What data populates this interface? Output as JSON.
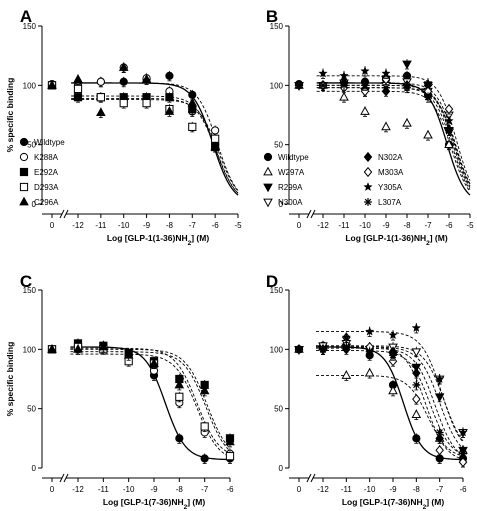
{
  "chart_data": [
    {
      "type": "line",
      "panel_label": "A",
      "ylabel": "% specific binding",
      "xlabel_main": "Log [GLP-1(1-36)NH",
      "xlabel_sub": "2",
      "xlabel_tail": "] (M)",
      "ylim": [
        0,
        150
      ],
      "yticks": [
        "0",
        "50",
        "100",
        "150"
      ],
      "xlim": [
        -12.8,
        -5
      ],
      "xticks": [
        -12,
        -11,
        -10,
        -9,
        -8,
        -7,
        -6,
        -5
      ],
      "xticklabels": [
        "-12",
        "-11",
        "-10",
        "-9",
        "-8",
        "-7",
        "-6",
        "-5"
      ],
      "zero_label": "0",
      "legend": [
        "Wildtype",
        "K288A",
        "E292A",
        "D293A",
        "C296A"
      ],
      "series": [
        {
          "name": "Wildtype",
          "marker": "circle-filled",
          "x": [
            -12,
            -11,
            -10,
            -9,
            -8,
            -7,
            -6
          ],
          "y": [
            100,
            103,
            103,
            105,
            108,
            92,
            50
          ],
          "zero": 101,
          "fit": {
            "top": 102,
            "bottom": 0,
            "logic50": -6.1,
            "hill": 1,
            "dash": false
          }
        },
        {
          "name": "K288A",
          "marker": "circle-open",
          "x": [
            -12,
            -11,
            -10,
            -9,
            -8,
            -7,
            -6
          ],
          "y": [
            99,
            103,
            115,
            106,
            95,
            78,
            62
          ],
          "zero": 100,
          "fit": {
            "top": 102,
            "bottom": 0,
            "logic50": -5.9,
            "hill": 1,
            "dash": true
          }
        },
        {
          "name": "E292A",
          "marker": "square-filled",
          "x": [
            -12,
            -11,
            -10,
            -9,
            -8,
            -7,
            -6
          ],
          "y": [
            90,
            90,
            90,
            90,
            90,
            80,
            48
          ],
          "zero": 100,
          "fit": {
            "top": 89,
            "bottom": 0,
            "logic50": -5.95,
            "hill": 1,
            "dash": true
          }
        },
        {
          "name": "D293A",
          "marker": "square-open",
          "x": [
            -12,
            -11,
            -10,
            -9,
            -8,
            -7,
            -6
          ],
          "y": [
            97,
            90,
            85,
            85,
            80,
            65,
            55
          ],
          "zero": 100,
          "fit": {
            "top": 88,
            "bottom": 0,
            "logic50": -5.85,
            "hill": 1,
            "dash": true
          }
        },
        {
          "name": "C296A",
          "marker": "triangle-up-filled",
          "x": [
            -12,
            -11,
            -10,
            -9,
            -8,
            -7,
            -6
          ],
          "y": [
            105,
            77,
            115,
            105,
            78,
            85,
            48
          ],
          "zero": 100,
          "fit": {
            "top": 91,
            "bottom": 0,
            "logic50": -5.95,
            "hill": 1,
            "dash": true
          }
        }
      ]
    },
    {
      "type": "line",
      "panel_label": "B",
      "ylabel": "",
      "xlabel_main": "Log [GLP-1(1-36)NH",
      "xlabel_sub": "2",
      "xlabel_tail": "] (M)",
      "ylim": [
        0,
        150
      ],
      "yticks": [
        "0",
        "50",
        "100",
        "150"
      ],
      "xlim": [
        -12.8,
        -5
      ],
      "xticks": [
        -12,
        -11,
        -10,
        -9,
        -8,
        -7,
        -6,
        -5
      ],
      "xticklabels": [
        "-12",
        "-11",
        "-10",
        "-9",
        "-8",
        "-7",
        "-6",
        "-5"
      ],
      "zero_label": "0",
      "legend": [
        "Wildtype",
        "W297A",
        "R299A",
        "N300A",
        "N302A",
        "M303A",
        "Y305A",
        "L307A"
      ],
      "series": [
        {
          "name": "Wildtype",
          "marker": "circle-filled",
          "x": [
            -12,
            -11,
            -10,
            -9,
            -8,
            -7,
            -6
          ],
          "y": [
            100,
            103,
            103,
            105,
            108,
            92,
            50
          ],
          "zero": 101,
          "fit": {
            "top": 102,
            "bottom": 0,
            "logic50": -6.1,
            "hill": 1,
            "dash": false
          }
        },
        {
          "name": "W297A",
          "marker": "triangle-up-open",
          "x": [
            -12,
            -11,
            -10,
            -9,
            -8,
            -7,
            -6
          ],
          "y": [
            100,
            90,
            78,
            65,
            68,
            58,
            50
          ],
          "zero": 100,
          "fit": {
            "top": 95,
            "bottom": 0,
            "logic50": -5.9,
            "hill": 1,
            "dash": true
          }
        },
        {
          "name": "R299A",
          "marker": "triangle-down-filled",
          "x": [
            -12,
            -11,
            -10,
            -9,
            -8,
            -7,
            -6
          ],
          "y": [
            100,
            100,
            95,
            105,
            118,
            100,
            62
          ],
          "zero": 100,
          "fit": {
            "top": 102,
            "bottom": 0,
            "logic50": -5.7,
            "hill": 1,
            "dash": true
          }
        },
        {
          "name": "N300A",
          "marker": "triangle-down-open",
          "x": [
            -12,
            -11,
            -10,
            -9,
            -8,
            -7,
            -6
          ],
          "y": [
            100,
            102,
            95,
            100,
            103,
            95,
            75
          ],
          "zero": 100,
          "fit": {
            "top": 100,
            "bottom": 0,
            "logic50": -5.75,
            "hill": 1,
            "dash": true
          }
        },
        {
          "name": "N302A",
          "marker": "diamond-filled",
          "x": [
            -12,
            -11,
            -10,
            -9,
            -8,
            -7,
            -6
          ],
          "y": [
            100,
            102,
            97,
            95,
            100,
            100,
            62
          ],
          "zero": 100,
          "fit": {
            "top": 100,
            "bottom": 0,
            "logic50": -5.8,
            "hill": 1,
            "dash": true
          }
        },
        {
          "name": "M303A",
          "marker": "diamond-open",
          "x": [
            -12,
            -11,
            -10,
            -9,
            -8,
            -7,
            -6
          ],
          "y": [
            100,
            98,
            95,
            105,
            100,
            95,
            80
          ],
          "zero": 100,
          "fit": {
            "top": 98,
            "bottom": 0,
            "logic50": -5.7,
            "hill": 1,
            "dash": true
          }
        },
        {
          "name": "Y305A",
          "marker": "star",
          "x": [
            -12,
            -11,
            -10,
            -9,
            -8,
            -7,
            -6
          ],
          "y": [
            110,
            108,
            112,
            110,
            100,
            102,
            70
          ],
          "zero": 100,
          "fit": {
            "top": 108,
            "bottom": 0,
            "logic50": -5.65,
            "hill": 1,
            "dash": true
          }
        },
        {
          "name": "L307A",
          "marker": "asterisk",
          "x": [
            -12,
            -11,
            -10,
            -9,
            -8,
            -7,
            -6
          ],
          "y": [
            100,
            100,
            100,
            98,
            98,
            90,
            62
          ],
          "zero": 100,
          "fit": {
            "top": 98,
            "bottom": 0,
            "logic50": -5.85,
            "hill": 1,
            "dash": true
          }
        }
      ]
    },
    {
      "type": "line",
      "panel_label": "C",
      "ylabel": "% specific binding",
      "xlabel_main": "Log [GLP-1(7-36)NH",
      "xlabel_sub": "2",
      "xlabel_tail": "] (M)",
      "ylim": [
        0,
        150
      ],
      "yticks": [
        "0",
        "50",
        "100",
        "150"
      ],
      "xlim": [
        -12.8,
        -6
      ],
      "xticks": [
        -12,
        -11,
        -10,
        -9,
        -8,
        -7,
        -6
      ],
      "xticklabels": [
        "-12",
        "-11",
        "-10",
        "-9",
        "-8",
        "-7",
        "-6"
      ],
      "zero_label": "0",
      "legend": [],
      "series": [
        {
          "name": "Wildtype",
          "marker": "circle-filled",
          "x": [
            -12,
            -11,
            -10,
            -9,
            -8,
            -7,
            -6
          ],
          "y": [
            103,
            103,
            95,
            78,
            25,
            8,
            8
          ],
          "zero": 100,
          "fit": {
            "top": 102,
            "bottom": 7,
            "logic50": -8.55,
            "hill": 1.1,
            "dash": false
          }
        },
        {
          "name": "K288A",
          "marker": "circle-open",
          "x": [
            -12,
            -11,
            -10,
            -9,
            -8,
            -7,
            -6
          ],
          "y": [
            100,
            102,
            95,
            82,
            55,
            30,
            12
          ],
          "zero": 100,
          "fit": {
            "top": 101,
            "bottom": 8,
            "logic50": -7.3,
            "hill": 1,
            "dash": true
          }
        },
        {
          "name": "E292A",
          "marker": "square-filled",
          "x": [
            -12,
            -11,
            -10,
            -9,
            -8,
            -7,
            -6
          ],
          "y": [
            105,
            103,
            97,
            90,
            75,
            70,
            25
          ],
          "zero": 100,
          "fit": {
            "top": 100,
            "bottom": 6,
            "logic50": -6.9,
            "hill": 1,
            "dash": true
          }
        },
        {
          "name": "D293A",
          "marker": "square-open",
          "x": [
            -12,
            -11,
            -10,
            -9,
            -8,
            -7,
            -6
          ],
          "y": [
            102,
            100,
            90,
            88,
            60,
            35,
            10
          ],
          "zero": 100,
          "fit": {
            "top": 96,
            "bottom": 5,
            "logic50": -7.3,
            "hill": 1,
            "dash": true
          }
        },
        {
          "name": "C296A",
          "marker": "triangle-up-filled",
          "x": [
            -12,
            -11,
            -10,
            -9,
            -8,
            -7,
            -6
          ],
          "y": [
            100,
            102,
            95,
            88,
            70,
            65,
            22
          ],
          "zero": 100,
          "fit": {
            "top": 98,
            "bottom": 5,
            "logic50": -6.95,
            "hill": 1,
            "dash": true
          }
        }
      ]
    },
    {
      "type": "line",
      "panel_label": "D",
      "ylabel": "",
      "xlabel_main": "Log [GLP-1(7-36)NH",
      "xlabel_sub": "2",
      "xlabel_tail": "] (M)",
      "ylim": [
        0,
        150
      ],
      "yticks": [
        "0",
        "50",
        "100",
        "150"
      ],
      "xlim": [
        -12.8,
        -6
      ],
      "xticks": [
        -12,
        -11,
        -10,
        -9,
        -8,
        -7,
        -6
      ],
      "xticklabels": [
        "-12",
        "-11",
        "-10",
        "-9",
        "-8",
        "-7",
        "-6"
      ],
      "zero_label": "0",
      "legend": [],
      "series": [
        {
          "name": "Wildtype",
          "marker": "circle-filled",
          "x": [
            -12,
            -11,
            -10,
            -9,
            -8,
            -7,
            -6
          ],
          "y": [
            103,
            103,
            95,
            70,
            25,
            8,
            8
          ],
          "zero": 100,
          "fit": {
            "top": 102,
            "bottom": 7,
            "logic50": -8.55,
            "hill": 1.1,
            "dash": false
          }
        },
        {
          "name": "W297A",
          "marker": "triangle-up-open",
          "x": [
            -12,
            -11,
            -10,
            -9,
            -8,
            -7,
            -6
          ],
          "y": [
            102,
            78,
            80,
            65,
            45,
            25,
            15
          ],
          "zero": 100,
          "fit": {
            "top": 78,
            "bottom": 8,
            "logic50": -7.5,
            "hill": 1,
            "dash": true
          }
        },
        {
          "name": "R299A",
          "marker": "triangle-down-filled",
          "x": [
            -12,
            -11,
            -10,
            -9,
            -8,
            -7,
            -6
          ],
          "y": [
            100,
            102,
            100,
            95,
            85,
            60,
            15
          ],
          "zero": 100,
          "fit": {
            "top": 102,
            "bottom": 8,
            "logic50": -7.0,
            "hill": 1,
            "dash": true
          }
        },
        {
          "name": "N300A",
          "marker": "triangle-down-open",
          "x": [
            -12,
            -11,
            -10,
            -9,
            -8,
            -7,
            -6
          ],
          "y": [
            103,
            105,
            100,
            102,
            98,
            75,
            30
          ],
          "zero": 100,
          "fit": {
            "top": 103,
            "bottom": 10,
            "logic50": -6.8,
            "hill": 1,
            "dash": true
          }
        },
        {
          "name": "N302A",
          "marker": "diamond-filled",
          "x": [
            -12,
            -11,
            -10,
            -9,
            -8,
            -7,
            -6
          ],
          "y": [
            100,
            100,
            100,
            98,
            80,
            25,
            5
          ],
          "zero": 100,
          "fit": {
            "top": 101,
            "bottom": 5,
            "logic50": -7.2,
            "hill": 1,
            "dash": true
          }
        },
        {
          "name": "M303A",
          "marker": "diamond-open",
          "x": [
            -12,
            -11,
            -10,
            -9,
            -8,
            -7,
            -6
          ],
          "y": [
            100,
            110,
            102,
            90,
            58,
            15,
            5
          ],
          "zero": 100,
          "fit": {
            "top": 103,
            "bottom": 5,
            "logic50": -7.6,
            "hill": 1,
            "dash": true
          }
        },
        {
          "name": "Y305A",
          "marker": "star",
          "x": [
            -12,
            -11,
            -10,
            -9,
            -8,
            -7,
            -6
          ],
          "y": [
            100,
            110,
            115,
            112,
            118,
            75,
            30
          ],
          "zero": 100,
          "fit": {
            "top": 115,
            "bottom": 10,
            "logic50": -6.9,
            "hill": 1,
            "dash": true
          }
        },
        {
          "name": "L307A",
          "marker": "asterisk",
          "x": [
            -12,
            -11,
            -10,
            -9,
            -8,
            -7,
            -6
          ],
          "y": [
            100,
            102,
            98,
            95,
            70,
            30,
            12
          ],
          "zero": 100,
          "fit": {
            "top": 99,
            "bottom": 8,
            "logic50": -7.4,
            "hill": 1,
            "dash": true
          }
        }
      ]
    }
  ]
}
